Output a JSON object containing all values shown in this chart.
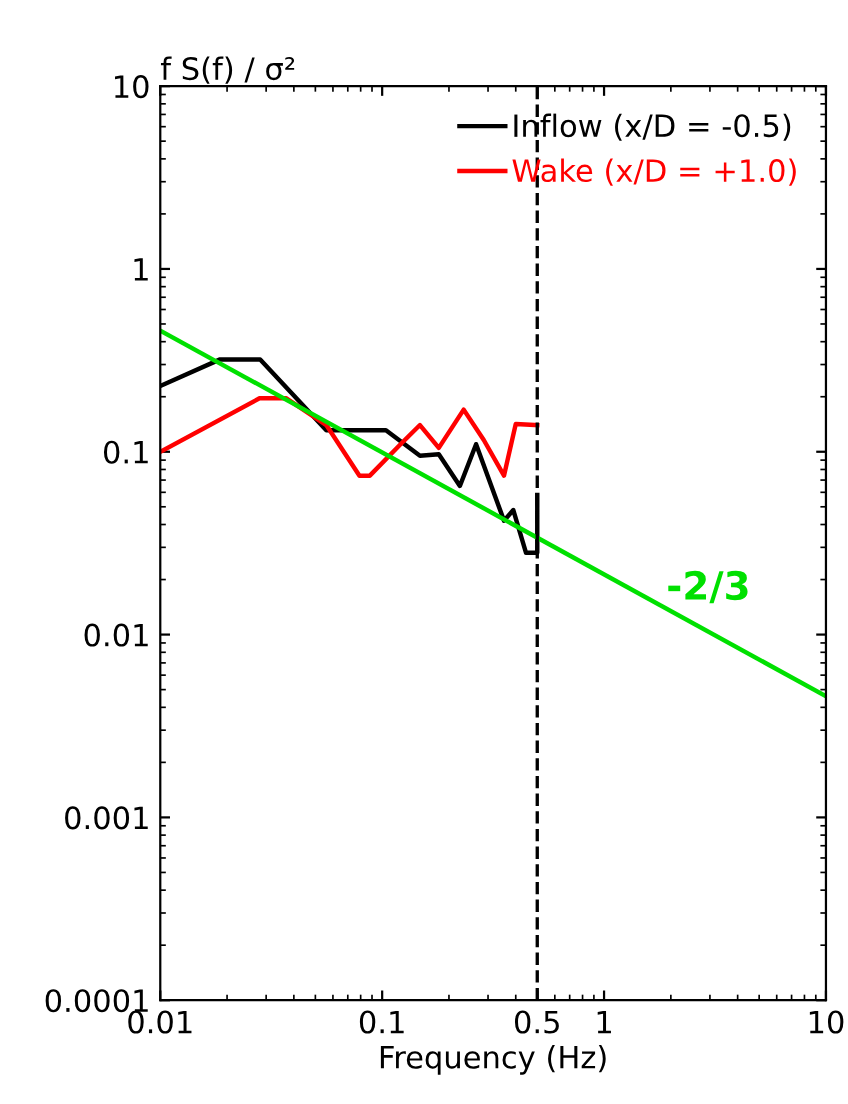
{
  "chart_data": {
    "type": "line",
    "ylabel": "f S(f) / σ²",
    "xlabel": "Frequency (Hz)",
    "log": "xy",
    "xlim": [
      0.01,
      10
    ],
    "ylim": [
      0.0001,
      10
    ],
    "xticks": [
      0.01,
      0.1,
      0.5,
      1,
      10
    ],
    "yticks": [
      0.0001,
      0.001,
      0.01,
      0.1,
      1,
      10
    ],
    "legend": "top right",
    "grid": false,
    "series": [
      {
        "name": "Inflow (x/D = -0.5)",
        "color": "#000000",
        "x": [
          0.01,
          0.0186,
          0.0282,
          0.056,
          0.104,
          0.148,
          0.18,
          0.224,
          0.265,
          0.354,
          0.39,
          0.445,
          0.5,
          0.5
        ],
        "values": [
          0.229,
          0.32,
          0.32,
          0.131,
          0.131,
          0.095,
          0.097,
          0.065,
          0.11,
          0.042,
          0.048,
          0.028,
          0.028,
          0.058
        ]
      },
      {
        "name": "Wake (x/D = +1.0)",
        "color": "#ff0000",
        "x": [
          0.01,
          0.028,
          0.037,
          0.056,
          0.079,
          0.088,
          0.121,
          0.148,
          0.18,
          0.233,
          0.287,
          0.354,
          0.4,
          0.5
        ],
        "values": [
          0.1,
          0.196,
          0.196,
          0.14,
          0.074,
          0.074,
          0.11,
          0.14,
          0.105,
          0.17,
          0.116,
          0.074,
          0.142,
          0.14
        ]
      },
      {
        "color": "#00e000",
        "x": [
          0.01,
          10
        ],
        "values": [
          0.46,
          0.0046
        ]
      }
    ],
    "ref_lines": [
      {
        "axis": "x",
        "value": 0.5,
        "color": "#000000",
        "line_style": "dashed"
      }
    ],
    "annotations": [
      "-2/3"
    ]
  }
}
